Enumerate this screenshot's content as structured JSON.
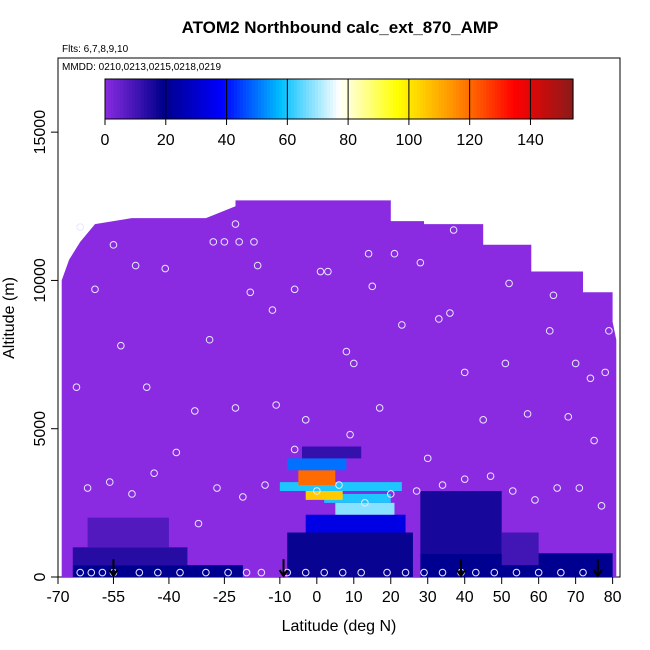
{
  "chart_data": {
    "type": "heatmap",
    "title": "ATOM2 Northbound calc_ext_870_AMP",
    "flights_note": "Flts: 6,7,8,9,10",
    "dates_note": "MMDD: 0210,0213,0215,0218,0219",
    "xlabel": "Latitude (deg N)",
    "ylabel": "Altitude (m)",
    "xlim": [
      -70,
      82
    ],
    "ylim": [
      0,
      17500
    ],
    "x_ticks": [
      "-70",
      "-55",
      "-40",
      "-25",
      "-10",
      "0",
      "10",
      "20",
      "30",
      "40",
      "50",
      "60",
      "70",
      "80"
    ],
    "x_tick_values": [
      -70,
      -55,
      -40,
      -25,
      -10,
      0,
      10,
      20,
      30,
      40,
      50,
      60,
      70,
      80
    ],
    "y_ticks": [
      "0",
      "5000",
      "10000",
      "15000"
    ],
    "y_tick_values": [
      0,
      5000,
      10000,
      15000
    ],
    "colorbar": {
      "ticks": [
        "0",
        "20",
        "40",
        "60",
        "80",
        "100",
        "120",
        "140"
      ],
      "tick_values": [
        0,
        20,
        40,
        60,
        80,
        100,
        120,
        140
      ],
      "range": [
        0,
        154
      ],
      "colors": [
        "#8a2be2",
        "#00008b",
        "#0000ff",
        "#00bfff",
        "#ffffff",
        "#ffff00",
        "#ff8c00",
        "#ff0000",
        "#8b1a1a"
      ]
    },
    "background_value": 0,
    "cells": [
      {
        "lat": [
          -8,
          26
        ],
        "alt": [
          0,
          1500
        ],
        "value": 18
      },
      {
        "lat": [
          -66,
          -20
        ],
        "alt": [
          0,
          400
        ],
        "value": 20
      },
      {
        "lat": [
          -66,
          -35
        ],
        "alt": [
          400,
          1000
        ],
        "value": 14
      },
      {
        "lat": [
          -62,
          -40
        ],
        "alt": [
          1000,
          2000
        ],
        "value": 8
      },
      {
        "lat": [
          -3,
          24
        ],
        "alt": [
          1500,
          2100
        ],
        "value": 34
      },
      {
        "lat": [
          5,
          21
        ],
        "alt": [
          2100,
          2500
        ],
        "value": 68
      },
      {
        "lat": [
          2,
          20
        ],
        "alt": [
          2500,
          2800
        ],
        "value": 60
      },
      {
        "lat": [
          -3,
          7
        ],
        "alt": [
          2600,
          3000
        ],
        "value": 105
      },
      {
        "lat": [
          -10,
          23
        ],
        "alt": [
          2900,
          3200
        ],
        "value": 60
      },
      {
        "lat": [
          -5,
          5
        ],
        "alt": [
          3100,
          3600
        ],
        "value": 120
      },
      {
        "lat": [
          -8,
          8
        ],
        "alt": [
          3600,
          4000
        ],
        "value": 50
      },
      {
        "lat": [
          -4,
          12
        ],
        "alt": [
          4000,
          4400
        ],
        "value": 12
      },
      {
        "lat": [
          28,
          80
        ],
        "alt": [
          0,
          800
        ],
        "value": 20
      },
      {
        "lat": [
          28,
          50
        ],
        "alt": [
          800,
          2900
        ],
        "value": 16
      },
      {
        "lat": [
          50,
          60
        ],
        "alt": [
          400,
          1500
        ],
        "value": 10
      }
    ],
    "observations_lat": [
      -64,
      -61,
      -58,
      -55,
      -48,
      -43,
      -37,
      -30,
      -24,
      -19,
      -15,
      -8,
      -3,
      2,
      7,
      12,
      19,
      24,
      29,
      34,
      39,
      43,
      48,
      54,
      60,
      66,
      72,
      -62,
      -56,
      -50,
      -44,
      -38,
      -32,
      -27,
      -20,
      -14,
      -6,
      0,
      6,
      13,
      20,
      27,
      34,
      40,
      47,
      53,
      59,
      65,
      71,
      77,
      -65,
      -53,
      -46,
      -33,
      -22,
      -11,
      -3,
      9,
      17,
      30,
      45,
      57,
      68,
      75,
      79,
      -60,
      -41,
      -28,
      -17,
      3,
      14,
      37,
      52,
      63,
      74,
      -29,
      -25,
      -22,
      -18,
      -16,
      -12,
      8,
      10,
      15,
      23,
      28,
      36,
      40,
      51,
      64,
      70,
      78,
      -64,
      -55,
      -49,
      -21,
      -6,
      1,
      21,
      33
    ],
    "observations_alt": [
      150,
      150,
      150,
      150,
      150,
      150,
      150,
      150,
      150,
      150,
      150,
      150,
      150,
      150,
      150,
      150,
      150,
      150,
      150,
      150,
      150,
      150,
      150,
      150,
      150,
      150,
      150,
      3000,
      3200,
      2800,
      3500,
      4200,
      1800,
      3000,
      2700,
      3100,
      4300,
      2900,
      3100,
      2500,
      2800,
      2900,
      3100,
      3300,
      3400,
      2900,
      2600,
      3000,
      3000,
      2400,
      6400,
      7800,
      6400,
      5600,
      5700,
      5800,
      5300,
      4800,
      5700,
      4000,
      5300,
      5500,
      5400,
      4600,
      8300,
      9700,
      10400,
      11300,
      11300,
      10300,
      10900,
      11700,
      9900,
      8300,
      6700,
      8000,
      11300,
      11900,
      9600,
      10500,
      9000,
      7600,
      7200,
      9800,
      8500,
      10600,
      8900,
      6900,
      7200,
      9500,
      7200,
      6900,
      11800,
      11200,
      10500,
      11300,
      9700,
      10300,
      10900,
      8700
    ],
    "arrows_lat": [
      -55,
      -9,
      39,
      76
    ],
    "panel_footprint": [
      [
        -69,
        0
      ],
      [
        -69,
        10000
      ],
      [
        -67,
        10700
      ],
      [
        -64,
        11300
      ],
      [
        -60,
        11900
      ],
      [
        -50,
        12100
      ],
      [
        -30,
        12100
      ],
      [
        -22,
        12500
      ],
      [
        -22,
        12700
      ],
      [
        -2,
        12700
      ],
      [
        20,
        12700
      ],
      [
        20,
        12000
      ],
      [
        29,
        12000
      ],
      [
        29,
        11900
      ],
      [
        45,
        11900
      ],
      [
        45,
        11200
      ],
      [
        58,
        11200
      ],
      [
        58,
        10300
      ],
      [
        72,
        10300
      ],
      [
        72,
        9600
      ],
      [
        80,
        9600
      ],
      [
        80,
        8600
      ],
      [
        81,
        8000
      ],
      [
        81,
        0
      ]
    ]
  }
}
